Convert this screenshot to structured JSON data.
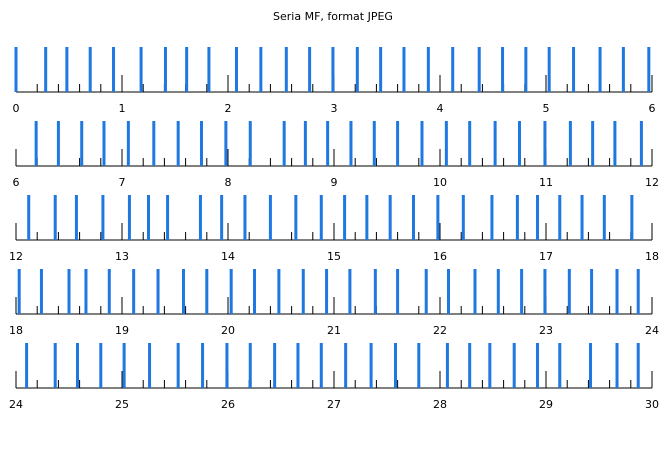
{
  "chart_data": {
    "type": "timeline",
    "title": "Seria MF, format JPEG",
    "color": "#1f77e0",
    "minor_ticks_per_unit": 5,
    "rows": [
      {
        "xlim": [
          0,
          6
        ],
        "xticks": [
          0,
          1,
          2,
          3,
          4,
          5,
          6
        ]
      },
      {
        "xlim": [
          6,
          12
        ],
        "xticks": [
          6,
          7,
          8,
          9,
          10,
          11,
          12
        ]
      },
      {
        "xlim": [
          12,
          18
        ],
        "xticks": [
          12,
          13,
          14,
          15,
          16,
          17,
          18
        ]
      },
      {
        "xlim": [
          18,
          24
        ],
        "xticks": [
          18,
          19,
          20,
          21,
          22,
          23,
          24
        ]
      },
      {
        "xlim": [
          24,
          30
        ],
        "xticks": [
          24,
          25,
          26,
          27,
          28,
          29,
          30
        ]
      }
    ],
    "x": [
      0,
      0.28,
      0.48,
      0.7,
      0.92,
      1.18,
      1.41,
      1.61,
      1.82,
      2.08,
      2.31,
      2.55,
      2.77,
      2.99,
      3.22,
      3.44,
      3.66,
      3.89,
      4.12,
      4.37,
      4.59,
      4.81,
      5.03,
      5.26,
      5.51,
      5.73,
      5.97,
      6.19,
      6.4,
      6.62,
      6.83,
      7.06,
      7.3,
      7.53,
      7.75,
      7.98,
      8.21,
      8.53,
      8.73,
      8.94,
      9.16,
      9.38,
      9.6,
      9.83,
      10.06,
      10.28,
      10.52,
      10.75,
      10.99,
      11.23,
      11.44,
      11.65,
      11.9,
      12.12,
      12.37,
      12.57,
      12.82,
      13.07,
      13.25,
      13.43,
      13.74,
      13.94,
      14.16,
      14.4,
      14.64,
      14.88,
      15.1,
      15.31,
      15.53,
      15.75,
      15.98,
      16.22,
      16.49,
      16.73,
      16.92,
      17.13,
      17.34,
      17.55,
      17.81,
      18.03,
      18.24,
      18.5,
      18.66,
      18.88,
      19.11,
      19.34,
      19.58,
      19.8,
      20.03,
      20.25,
      20.48,
      20.71,
      20.93,
      21.15,
      21.39,
      21.6,
      21.87,
      22.08,
      22.33,
      22.55,
      22.77,
      22.99,
      23.22,
      23.43,
      23.67,
      23.87,
      24.1,
      24.37,
      24.58,
      24.8,
      25.02,
      25.26,
      25.53,
      25.76,
      25.99,
      26.21,
      26.44,
      26.66,
      26.88,
      27.11,
      27.35,
      27.58,
      27.8,
      28.07,
      28.28,
      28.47,
      28.7,
      28.92,
      29.13,
      29.42,
      29.67,
      29.87
    ]
  }
}
